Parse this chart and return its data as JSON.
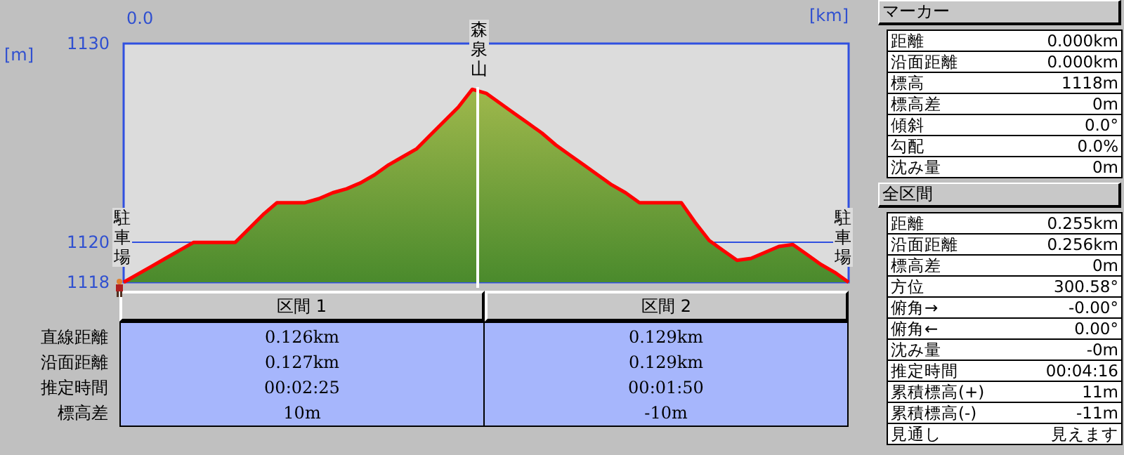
{
  "chart_data": [
    {
      "type": "area",
      "xlabel": "[km]",
      "ylabel": "[m]",
      "categories": [
        null,
        null,
        null,
        null,
        null,
        null,
        null,
        null,
        null,
        null,
        null,
        null,
        null,
        null,
        null,
        null,
        null,
        null,
        null,
        null,
        null,
        null,
        null,
        null,
        null,
        null,
        null,
        null,
        null,
        null,
        null,
        null,
        null,
        null,
        null,
        null,
        null,
        null,
        null,
        null,
        null,
        null,
        null,
        null,
        null,
        null,
        null,
        null,
        null,
        null,
        null,
        null,
        null
      ],
      "series": [
        {
          "color": "#ff0000",
          "values": [
            1118,
            1118.4,
            1118.8,
            1119.2,
            1119.6,
            1120,
            1120,
            1120,
            1120,
            1120.7,
            1121.4,
            1122,
            1122,
            1122,
            1122.2,
            1122.5,
            1122.7,
            1123,
            1123.4,
            1123.9,
            1124.3,
            1124.7,
            1125.4,
            1126.1,
            1126.8,
            1127.7,
            1127.5,
            1127,
            1126.5,
            1126,
            1125.5,
            1124.9,
            1124.4,
            1123.9,
            1123.4,
            1122.9,
            1122.5,
            1122,
            1122,
            1122,
            1122,
            1121,
            1120.1,
            1119.6,
            1119.1,
            1119.2,
            1119.5,
            1119.8,
            1119.9,
            1119.4,
            1118.9,
            1118.5,
            1118
          ]
        }
      ],
      "ylim": [
        1118,
        1130
      ],
      "yticks": [
        1118,
        1120,
        1130
      ],
      "marker": "none",
      "line_style": "solid",
      "ref_lines": [
        {
          "axis": "y",
          "value": 1120,
          "label": null,
          "color": "#3050e0"
        }
      ],
      "annotations": [
        "0.0",
        "駐車場",
        "森泉山",
        "駐車場"
      ]
    },
    {
      "type": "other",
      "categories": [
        "区間 1",
        "区間 2"
      ],
      "y_categories": [
        "直線距離",
        "沿面距離",
        "推定時間",
        "標高差"
      ],
      "cell_labels": [
        [
          "0.126km",
          "0.129km"
        ],
        [
          "0.127km",
          "0.129km"
        ],
        [
          "00:02:25",
          "00:01:50"
        ],
        [
          "10m",
          "-10m"
        ]
      ]
    },
    {
      "type": "other",
      "title": "マーカー",
      "categories": [
        "距離",
        "沿面距離",
        "標高",
        "標高差",
        "傾斜",
        "勾配",
        "沈み量"
      ],
      "value_labels": [
        "0.000km",
        "0.000km",
        "1118m",
        "0m",
        "0.0°",
        "0.0%",
        "0m"
      ]
    },
    {
      "type": "other",
      "title": "全区間",
      "categories": [
        "距離",
        "沿面距離",
        "標高差",
        "方位",
        "俯角→",
        "俯角←",
        "沈み量",
        "推定時間",
        "累積標高(+)",
        "累積標高(-)",
        "見通し"
      ],
      "value_labels": [
        "0.255km",
        "0.256km",
        "0m",
        "300.58°",
        "-0.00°",
        "0.00°",
        "-0m",
        "00:04:16",
        "11m",
        "-11m",
        "見えます"
      ]
    }
  ]
}
